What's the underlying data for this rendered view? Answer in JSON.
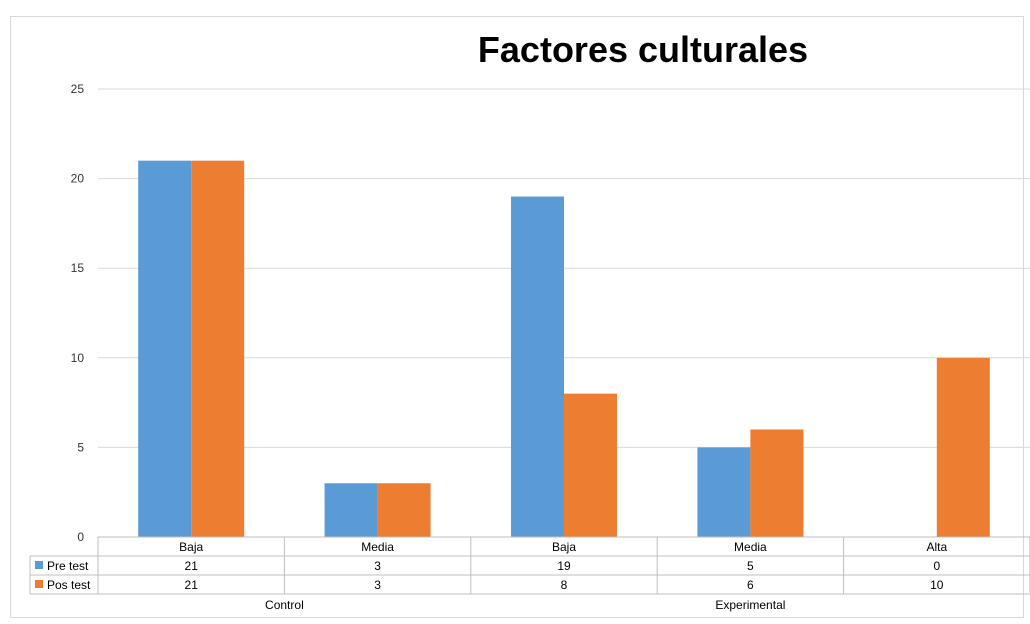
{
  "chart_data": {
    "type": "bar",
    "title": "Factores culturales",
    "xlabel": "",
    "ylabel": "",
    "ylim": [
      0,
      25
    ],
    "yticks": [
      0,
      5,
      10,
      15,
      20,
      25
    ],
    "grid": true,
    "legend": "data-table",
    "groups": [
      {
        "name": "Control",
        "categories": [
          "Baja",
          "Media"
        ]
      },
      {
        "name": "Experimental",
        "categories": [
          "Baja",
          "Media",
          "Alta"
        ]
      }
    ],
    "categories": [
      "Baja",
      "Media",
      "Baja",
      "Media",
      "Alta"
    ],
    "series": [
      {
        "name": "Pre test",
        "color": "#5B9BD5",
        "values": [
          21,
          3,
          19,
          5,
          0
        ]
      },
      {
        "name": "Pos test",
        "color": "#ED7D31",
        "values": [
          21,
          3,
          8,
          6,
          10
        ]
      }
    ]
  }
}
